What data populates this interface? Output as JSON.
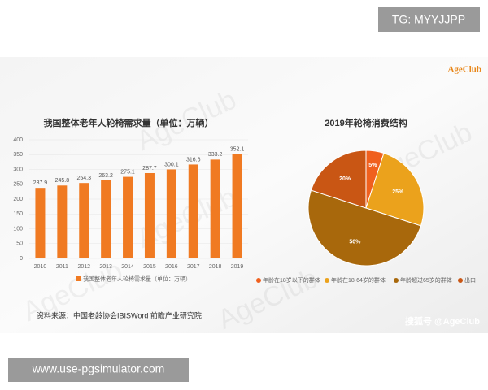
{
  "overlay": {
    "tag": "TG: MYYJJPP",
    "site": "www.use-pgsimulator.com",
    "logo": "AgeClub",
    "watermark": "AgeClub",
    "credit": "搜狐号 @AgeClub",
    "source": "资料来源：中国老龄协会IBISWord 前瞻产业研究院"
  },
  "chart_data": [
    {
      "type": "bar",
      "title": "我国整体老年人轮椅需求量（单位：万辆）",
      "categories": [
        "2010",
        "2011",
        "2012",
        "2013",
        "2014",
        "2015",
        "2016",
        "2017",
        "2018",
        "2019"
      ],
      "series": [
        {
          "name": "我国整体老年人轮椅需求量（单位：万辆）",
          "color": "#f07a22",
          "values": [
            237.9,
            245.8,
            254.3,
            263.2,
            275.1,
            287.7,
            300.1,
            316.6,
            333.2,
            352.1
          ]
        }
      ],
      "ylim": [
        0,
        400
      ],
      "yticks": [
        0,
        50,
        100,
        150,
        200,
        250,
        300,
        350,
        400
      ],
      "grid": true
    },
    {
      "type": "pie",
      "title": "2019年轮椅消费结构",
      "categories": [
        "年龄在18岁以下的群体",
        "年龄在18-64岁的群体",
        "年龄超过65岁的群体",
        "出口"
      ],
      "values": [
        5,
        25,
        50,
        20
      ],
      "value_labels": [
        "5%",
        "25%",
        "50%",
        "20%"
      ],
      "colors": [
        "#f0601e",
        "#eba21c",
        "#a8680c",
        "#c95614"
      ]
    }
  ]
}
